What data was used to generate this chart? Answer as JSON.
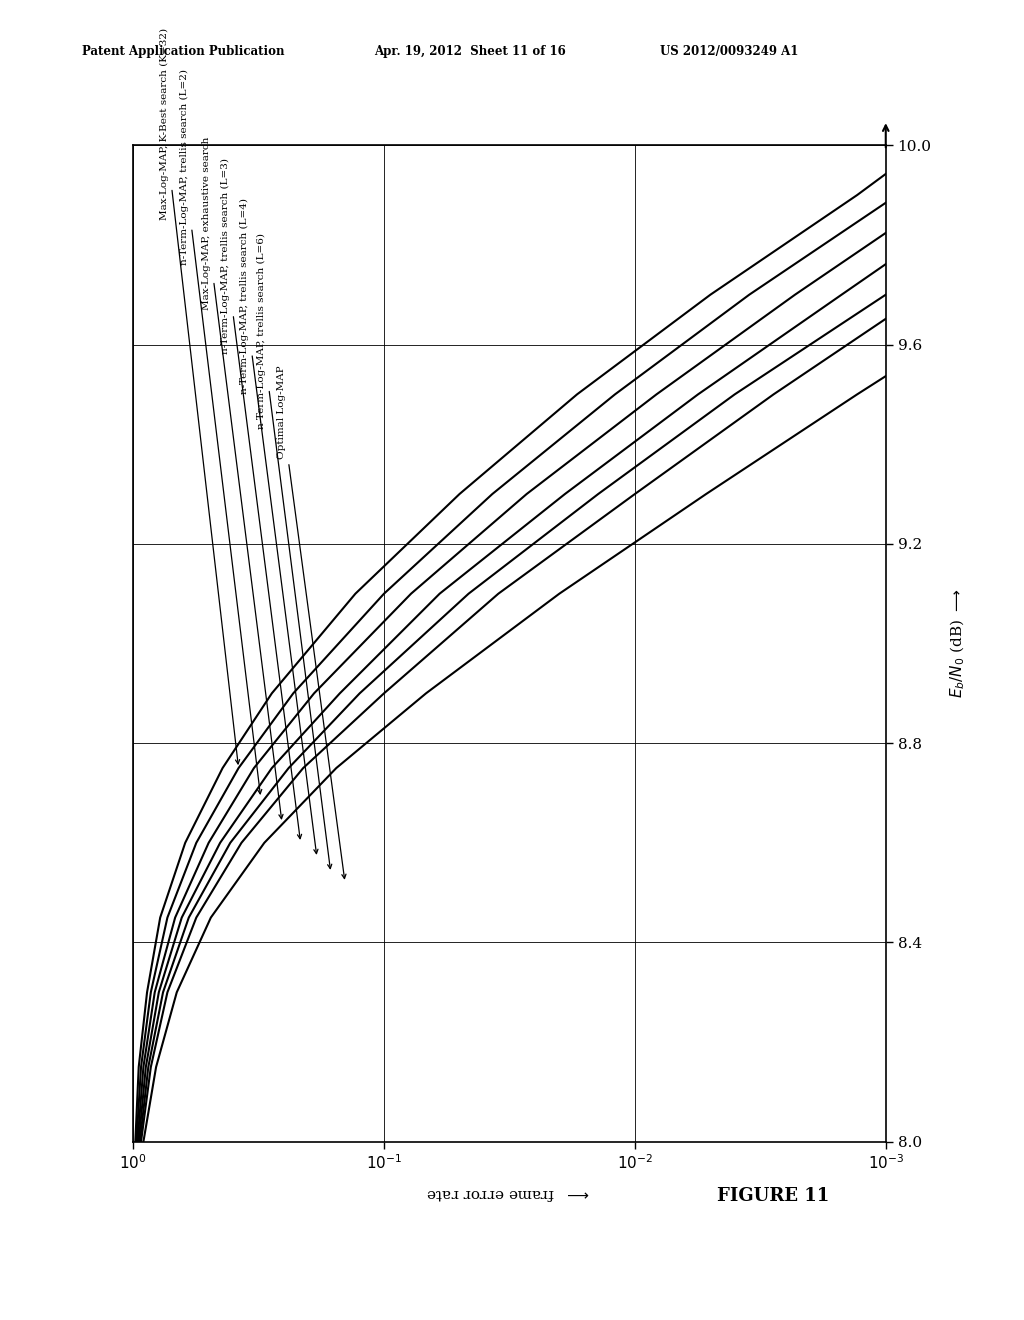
{
  "header_left": "Patent Application Publication",
  "header_mid": "Apr. 19, 2012  Sheet 11 of 16",
  "header_right": "US 2012/0093249 A1",
  "figure_label": "FIGURE 11",
  "yticks": [
    8.0,
    8.4,
    8.8,
    9.2,
    9.6,
    10.0
  ],
  "curves": [
    {
      "label": "Max-Log-MAP, K-Best search (K=32)",
      "snr": [
        8.0,
        8.15,
        8.3,
        8.45,
        8.6,
        8.75,
        8.9,
        9.1,
        9.3,
        9.5,
        9.7,
        9.9,
        10.0
      ],
      "fer": [
        0.98,
        0.95,
        0.88,
        0.78,
        0.62,
        0.44,
        0.28,
        0.13,
        0.05,
        0.017,
        0.005,
        0.0013,
        0.0007
      ]
    },
    {
      "label": "n-Term-Log-MAP, trellis search (L=2)",
      "snr": [
        8.0,
        8.15,
        8.3,
        8.45,
        8.6,
        8.75,
        8.9,
        9.1,
        9.3,
        9.5,
        9.7,
        9.9,
        10.0
      ],
      "fer": [
        0.97,
        0.93,
        0.85,
        0.73,
        0.56,
        0.38,
        0.23,
        0.1,
        0.037,
        0.012,
        0.0035,
        0.0009,
        0.0005
      ]
    },
    {
      "label": "Max-Log-MAP, exhaustive search",
      "snr": [
        8.0,
        8.15,
        8.3,
        8.45,
        8.6,
        8.75,
        8.9,
        9.1,
        9.3,
        9.5,
        9.7,
        9.9,
        10.0
      ],
      "fer": [
        0.96,
        0.91,
        0.82,
        0.68,
        0.5,
        0.33,
        0.19,
        0.078,
        0.027,
        0.0082,
        0.0023,
        0.0006,
        0.00032
      ]
    },
    {
      "label": "n-Term-Log-MAP, trellis search (L=3)",
      "snr": [
        8.0,
        8.15,
        8.3,
        8.45,
        8.6,
        8.75,
        8.9,
        9.1,
        9.3,
        9.5,
        9.7,
        9.9,
        10.0
      ],
      "fer": [
        0.95,
        0.89,
        0.79,
        0.64,
        0.45,
        0.28,
        0.15,
        0.06,
        0.019,
        0.0056,
        0.0015,
        0.0004,
        0.00021
      ]
    },
    {
      "label": "n-Term-Log-MAP, trellis search (L=4)",
      "snr": [
        8.0,
        8.15,
        8.3,
        8.45,
        8.6,
        8.75,
        8.9,
        9.1,
        9.3,
        9.5,
        9.7,
        9.9,
        10.0
      ],
      "fer": [
        0.94,
        0.87,
        0.76,
        0.6,
        0.41,
        0.24,
        0.125,
        0.046,
        0.014,
        0.004,
        0.001,
        0.00027,
        0.00014
      ]
    },
    {
      "label": "n-Term-Log-MAP, trellis search (L=6)",
      "snr": [
        8.0,
        8.15,
        8.3,
        8.45,
        8.6,
        8.75,
        8.9,
        9.1,
        9.3,
        9.5,
        9.7,
        9.9,
        10.0
      ],
      "fer": [
        0.93,
        0.85,
        0.73,
        0.56,
        0.37,
        0.21,
        0.1,
        0.035,
        0.01,
        0.0028,
        0.00072,
        0.00018,
        9.5e-05
      ]
    },
    {
      "label": "Optimal Log-MAP",
      "snr": [
        8.0,
        8.15,
        8.3,
        8.45,
        8.6,
        8.75,
        8.9,
        9.1,
        9.3,
        9.5,
        9.7,
        9.9,
        10.0
      ],
      "fer": [
        0.91,
        0.81,
        0.67,
        0.49,
        0.3,
        0.155,
        0.068,
        0.02,
        0.0052,
        0.0013,
        0.00031,
        7.5e-05,
        3.8e-05
      ]
    }
  ],
  "legend_labels": [
    "Max-Log-MAP, K-Best search (K=32)",
    "n-Term-Log-MAP, trellis search (L=2)",
    "Max-Log-MAP, exhaustive search",
    "n-Term-Log-MAP, trellis search (L=3)",
    "n-Term-Log-MAP, trellis search (L=4)",
    "n-Term-Log-MAP, trellis search (L=6)",
    "Optimal Log-MAP"
  ],
  "legend_fer_x": [
    0.72,
    0.6,
    0.49,
    0.41,
    0.345,
    0.295,
    0.245
  ],
  "legend_snr_y": [
    9.85,
    9.76,
    9.67,
    9.58,
    9.5,
    9.43,
    9.37
  ],
  "arrow_fer_x": [
    0.38,
    0.31,
    0.255,
    0.215,
    0.185,
    0.163,
    0.143
  ],
  "arrow_snr_y": [
    8.75,
    8.69,
    8.64,
    8.6,
    8.57,
    8.54,
    8.52
  ],
  "text_rotation": 90,
  "line_color": "#000000",
  "background_color": "#ffffff"
}
